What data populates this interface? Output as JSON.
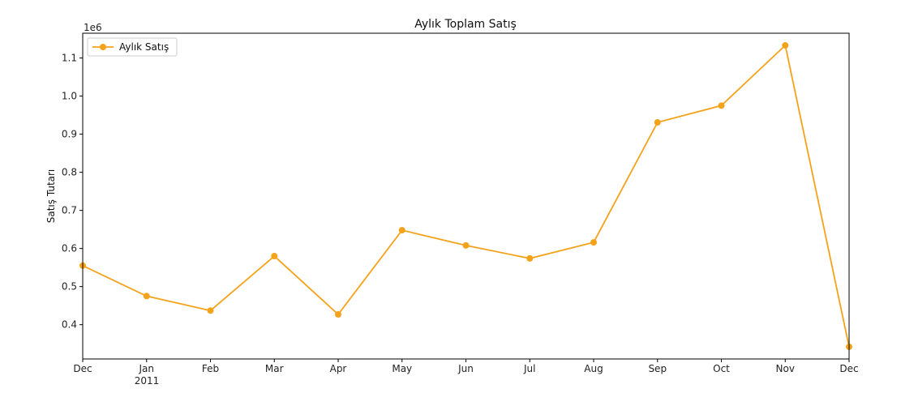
{
  "chart_data": {
    "type": "line",
    "title": "Aylık Toplam Satış",
    "ylabel": "Satış Tutarı",
    "xlabel": "",
    "offset_label": "1e6",
    "year_label": "2011",
    "x": [
      "Dec",
      "Jan",
      "Feb",
      "Mar",
      "Apr",
      "May",
      "Jun",
      "Jul",
      "Aug",
      "Sep",
      "Oct",
      "Nov",
      "Dec"
    ],
    "ylim": [
      0.31,
      1.165
    ],
    "yticks": [
      "0.4",
      "0.5",
      "0.6",
      "0.7",
      "0.8",
      "0.9",
      "1.0",
      "1.1"
    ],
    "series": [
      {
        "name": "Aylık Satış",
        "color": "#f5a21b",
        "values": [
          0.555,
          0.475,
          0.437,
          0.58,
          0.427,
          0.648,
          0.608,
          0.574,
          0.616,
          0.931,
          0.975,
          1.133,
          0.342
        ]
      }
    ],
    "grid": false,
    "legend": "top-left"
  }
}
